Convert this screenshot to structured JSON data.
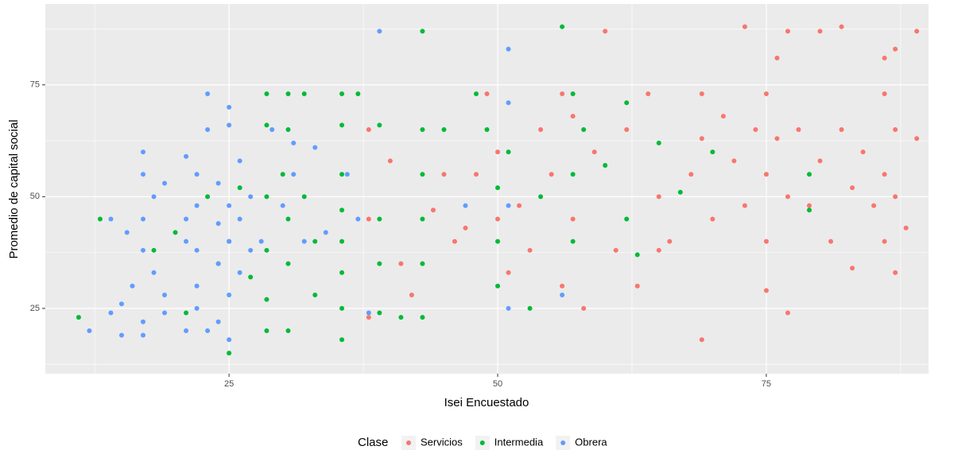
{
  "chart_data": {
    "type": "scatter",
    "x_label": "Isei Encuestado",
    "y_label": "Promedio de capital social",
    "legend_title": "Clase",
    "legend_position": "bottom",
    "grid": true,
    "xlim": [
      7.9,
      90.1
    ],
    "xticks": [
      25,
      50,
      75
    ],
    "minor_xticks": [
      12.5,
      37.5,
      62.5,
      87.5
    ],
    "ylim": [
      10.4,
      93.1
    ],
    "yticks": [
      25,
      50,
      75
    ],
    "minor_yticks": [
      12.5,
      37.5,
      62.5,
      87.5
    ],
    "series": [
      {
        "name": "Servicios",
        "color": "#F8766D",
        "x": [
          38,
          38,
          38,
          40,
          41,
          42,
          44,
          45,
          46,
          47,
          48,
          49,
          50,
          50,
          51,
          52,
          53,
          54,
          55,
          56,
          56,
          57,
          57,
          58,
          59,
          60,
          61,
          62,
          63,
          64,
          65,
          65,
          66,
          68,
          69,
          69,
          69,
          70,
          71,
          72,
          73,
          73,
          74,
          75,
          75,
          75,
          75,
          76,
          76,
          77,
          77,
          77,
          78,
          79,
          80,
          80,
          81,
          82,
          82,
          83,
          83,
          84,
          85,
          86,
          86,
          86,
          86,
          87,
          87,
          87,
          87,
          88,
          89,
          89
        ],
        "y": [
          65,
          45,
          23,
          58,
          35,
          28,
          47,
          55,
          40,
          43,
          55,
          73,
          60,
          45,
          33,
          48,
          38,
          65,
          55,
          73,
          30,
          68,
          45,
          25,
          60,
          87,
          38,
          65,
          30,
          73,
          50,
          38,
          40,
          55,
          73,
          63,
          18,
          45,
          68,
          58,
          88,
          48,
          65,
          73,
          55,
          40,
          29,
          81,
          63,
          87,
          50,
          24,
          65,
          48,
          87,
          58,
          40,
          88,
          65,
          52,
          34,
          60,
          48,
          81,
          73,
          55,
          40,
          83,
          65,
          50,
          33,
          43,
          87,
          63
        ]
      },
      {
        "name": "Intermedia",
        "color": "#00BA38",
        "x": [
          11,
          13,
          18,
          20,
          21,
          23,
          24,
          25,
          25,
          26,
          27,
          28.5,
          28.5,
          28.5,
          28.5,
          28.5,
          28.5,
          30,
          30.5,
          30.5,
          30.5,
          30.5,
          30.5,
          32,
          32,
          33,
          33,
          35.5,
          35.5,
          35.5,
          35.5,
          35.5,
          35.5,
          35.5,
          35.5,
          37,
          39,
          39,
          39,
          39,
          41,
          43,
          43,
          43,
          43,
          43,
          43,
          45,
          48,
          49,
          50,
          50,
          50,
          51,
          53,
          54,
          56,
          57,
          57,
          57,
          58,
          60,
          62,
          62,
          63,
          65,
          67,
          70,
          79,
          79
        ],
        "y": [
          23,
          45,
          38,
          42,
          24,
          50,
          35,
          15,
          40,
          52,
          32,
          73,
          66,
          50,
          38,
          27,
          20,
          55,
          73,
          65,
          45,
          35,
          20,
          73,
          50,
          40,
          28,
          73,
          66,
          55,
          47,
          40,
          33,
          25,
          18,
          73,
          66,
          45,
          35,
          24,
          23,
          87,
          65,
          55,
          45,
          35,
          23,
          65,
          73,
          65,
          52,
          40,
          30,
          60,
          25,
          50,
          88,
          73,
          55,
          40,
          65,
          57,
          71,
          45,
          37,
          62,
          51,
          60,
          55,
          47
        ]
      },
      {
        "name": "Obrera",
        "color": "#619CFF",
        "x": [
          12,
          14,
          14,
          15,
          15,
          15.5,
          16,
          17,
          17,
          17,
          17,
          17,
          17,
          18,
          18,
          19,
          19,
          19,
          21,
          21,
          21,
          21,
          22,
          22,
          22,
          22,
          22,
          23,
          23,
          23,
          24,
          24,
          24,
          24,
          25,
          25,
          25,
          25,
          25,
          25,
          26,
          26,
          26,
          27,
          27,
          28,
          29,
          30,
          31,
          31,
          32,
          33,
          34,
          36,
          37,
          38,
          39,
          47,
          51,
          51,
          51,
          51,
          56
        ],
        "y": [
          20,
          24,
          45,
          19,
          26,
          42,
          30,
          60,
          55,
          45,
          38,
          22,
          19,
          50,
          33,
          53,
          28,
          24,
          59,
          45,
          40,
          20,
          55,
          48,
          38,
          30,
          25,
          73,
          65,
          20,
          53,
          44,
          35,
          22,
          70,
          66,
          48,
          40,
          28,
          18,
          58,
          45,
          33,
          50,
          38,
          40,
          65,
          48,
          55,
          62,
          40,
          61,
          42,
          55,
          45,
          24,
          87,
          48,
          83,
          71,
          48,
          25,
          28
        ]
      }
    ]
  }
}
